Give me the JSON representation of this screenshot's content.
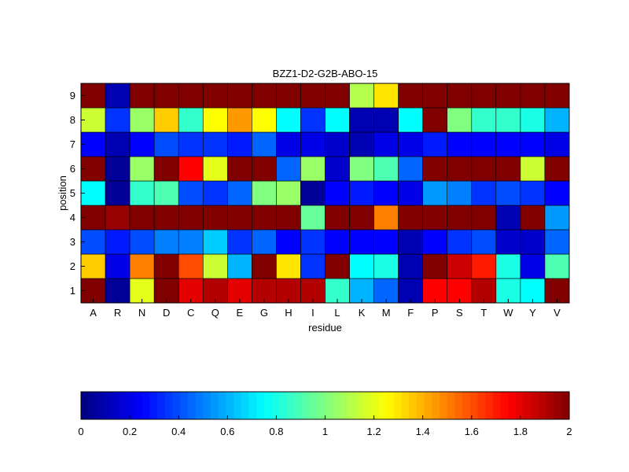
{
  "chart_data": {
    "type": "heatmap",
    "title": "BZZ1-D2-G2B-ABO-15",
    "xlabel": "residue",
    "ylabel": "position",
    "x_categories": [
      "A",
      "R",
      "N",
      "D",
      "C",
      "Q",
      "E",
      "G",
      "H",
      "I",
      "L",
      "K",
      "M",
      "F",
      "P",
      "S",
      "T",
      "W",
      "Y",
      "V"
    ],
    "y_categories": [
      "1",
      "2",
      "3",
      "4",
      "5",
      "6",
      "7",
      "8",
      "9"
    ],
    "colormap": "jet",
    "clim": [
      0,
      2
    ],
    "colorbar": {
      "orientation": "horizontal",
      "position": "bottom",
      "ticks": [
        "0",
        "0.2",
        "0.4",
        "0.6",
        "0.8",
        "1",
        "1.2",
        "1.4",
        "1.6",
        "1.8",
        "2"
      ]
    },
    "values": [
      [
        2.0,
        0.05,
        1.2,
        2.0,
        1.8,
        1.9,
        1.8,
        1.9,
        1.9,
        1.9,
        0.85,
        0.6,
        0.45,
        0.1,
        1.75,
        1.75,
        1.9,
        0.8,
        0.75,
        2.0
      ],
      [
        1.35,
        0.2,
        1.5,
        2.0,
        1.6,
        1.15,
        0.6,
        2.0,
        1.3,
        0.35,
        2.0,
        0.75,
        0.8,
        0.1,
        2.0,
        1.85,
        1.7,
        0.8,
        0.2,
        0.9
      ],
      [
        0.4,
        0.3,
        0.4,
        0.5,
        0.5,
        0.65,
        0.35,
        0.45,
        0.25,
        0.35,
        0.25,
        0.25,
        0.25,
        0.1,
        0.25,
        0.35,
        0.4,
        0.15,
        0.15,
        0.45
      ],
      [
        2.0,
        1.95,
        2.0,
        2.0,
        2.0,
        2.0,
        2.0,
        2.0,
        2.0,
        0.95,
        2.0,
        2.0,
        1.5,
        2.0,
        2.0,
        2.0,
        2.0,
        0.1,
        2.0,
        0.55
      ],
      [
        0.75,
        0.05,
        0.85,
        0.9,
        0.4,
        0.35,
        0.45,
        1.0,
        1.05,
        0.05,
        0.25,
        0.3,
        0.25,
        0.2,
        0.55,
        0.5,
        0.35,
        0.4,
        0.35,
        0.25
      ],
      [
        2.0,
        0.05,
        1.05,
        2.0,
        1.75,
        1.2,
        2.0,
        2.0,
        0.45,
        1.05,
        0.15,
        1.0,
        0.9,
        0.45,
        2.0,
        2.0,
        2.0,
        2.0,
        1.15,
        2.0
      ],
      [
        0.25,
        0.1,
        0.25,
        0.4,
        0.35,
        0.35,
        0.3,
        0.45,
        0.2,
        0.2,
        0.15,
        0.1,
        0.2,
        0.2,
        0.3,
        0.25,
        0.25,
        0.25,
        0.25,
        0.2
      ],
      [
        1.15,
        0.35,
        1.05,
        1.35,
        0.85,
        1.25,
        1.45,
        1.25,
        0.75,
        0.35,
        0.75,
        0.1,
        0.1,
        0.75,
        2.0,
        1.0,
        0.85,
        0.85,
        0.8,
        0.6
      ],
      [
        2.0,
        0.1,
        2.0,
        2.0,
        2.0,
        2.0,
        2.0,
        2.0,
        2.0,
        2.0,
        2.0,
        1.1,
        1.3,
        2.0,
        2.0,
        2.0,
        2.0,
        2.0,
        2.0,
        2.0
      ]
    ]
  }
}
